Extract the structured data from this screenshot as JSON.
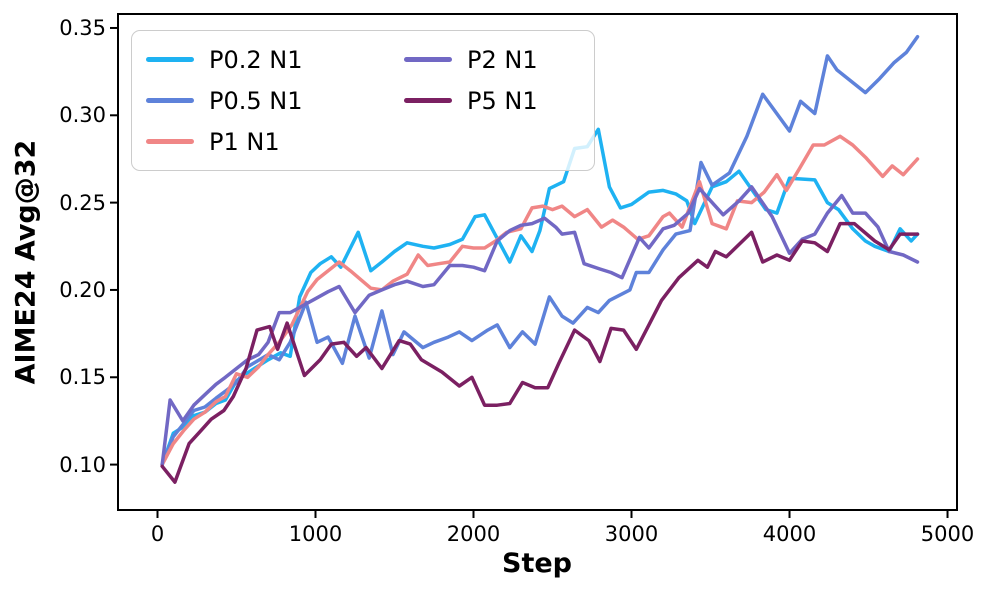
{
  "chart_data": {
    "type": "line",
    "title": "",
    "xlabel": "Step",
    "ylabel": "AIME24 Avg@32",
    "xlim": [
      -250,
      5060
    ],
    "ylim": [
      0.074,
      0.358
    ],
    "x_ticks": [
      0,
      1000,
      2000,
      3000,
      4000,
      5000
    ],
    "y_ticks": [
      0.1,
      0.15,
      0.2,
      0.25,
      0.3,
      0.35
    ],
    "grid": false,
    "background": "#ffffff",
    "axis_color": "#000000",
    "legend": {
      "position": "upper-left",
      "columns": 2,
      "order": "column-major",
      "frame_color": "#cccccc"
    },
    "series": [
      {
        "name": "P0.2 N1",
        "color": "#1eb2f2",
        "points": [
          [
            30,
            0.1
          ],
          [
            100,
            0.118
          ],
          [
            170,
            0.122
          ],
          [
            230,
            0.128
          ],
          [
            300,
            0.13
          ],
          [
            370,
            0.135
          ],
          [
            430,
            0.137
          ],
          [
            500,
            0.148
          ],
          [
            560,
            0.152
          ],
          [
            630,
            0.156
          ],
          [
            700,
            0.16
          ],
          [
            780,
            0.164
          ],
          [
            840,
            0.162
          ],
          [
            900,
            0.196
          ],
          [
            970,
            0.21
          ],
          [
            1030,
            0.215
          ],
          [
            1100,
            0.219
          ],
          [
            1160,
            0.213
          ],
          [
            1270,
            0.233
          ],
          [
            1350,
            0.211
          ],
          [
            1420,
            0.216
          ],
          [
            1500,
            0.222
          ],
          [
            1580,
            0.227
          ],
          [
            1680,
            0.225
          ],
          [
            1750,
            0.224
          ],
          [
            1850,
            0.226
          ],
          [
            1930,
            0.229
          ],
          [
            2010,
            0.242
          ],
          [
            2070,
            0.243
          ],
          [
            2230,
            0.216
          ],
          [
            2300,
            0.231
          ],
          [
            2370,
            0.222
          ],
          [
            2420,
            0.234
          ],
          [
            2480,
            0.258
          ],
          [
            2570,
            0.262
          ],
          [
            2640,
            0.281
          ],
          [
            2720,
            0.282
          ],
          [
            2790,
            0.292
          ],
          [
            2860,
            0.259
          ],
          [
            2930,
            0.247
          ],
          [
            3000,
            0.249
          ],
          [
            3110,
            0.256
          ],
          [
            3200,
            0.257
          ],
          [
            3280,
            0.255
          ],
          [
            3350,
            0.251
          ],
          [
            3400,
            0.238
          ],
          [
            3510,
            0.259
          ],
          [
            3600,
            0.262
          ],
          [
            3680,
            0.268
          ],
          [
            3850,
            0.246
          ],
          [
            3920,
            0.244
          ],
          [
            4000,
            0.264
          ],
          [
            4160,
            0.263
          ],
          [
            4240,
            0.25
          ],
          [
            4310,
            0.246
          ],
          [
            4400,
            0.235
          ],
          [
            4480,
            0.228
          ],
          [
            4540,
            0.225
          ],
          [
            4630,
            0.222
          ],
          [
            4700,
            0.235
          ],
          [
            4770,
            0.228
          ],
          [
            4810,
            0.232
          ]
        ]
      },
      {
        "name": "P0.5 N1",
        "color": "#5e82da",
        "points": [
          [
            30,
            0.1
          ],
          [
            100,
            0.116
          ],
          [
            170,
            0.124
          ],
          [
            230,
            0.131
          ],
          [
            300,
            0.133
          ],
          [
            370,
            0.138
          ],
          [
            430,
            0.142
          ],
          [
            500,
            0.147
          ],
          [
            570,
            0.156
          ],
          [
            700,
            0.163
          ],
          [
            770,
            0.16
          ],
          [
            840,
            0.17
          ],
          [
            940,
            0.193
          ],
          [
            1010,
            0.17
          ],
          [
            1080,
            0.173
          ],
          [
            1170,
            0.158
          ],
          [
            1250,
            0.185
          ],
          [
            1340,
            0.161
          ],
          [
            1420,
            0.188
          ],
          [
            1490,
            0.163
          ],
          [
            1560,
            0.176
          ],
          [
            1680,
            0.167
          ],
          [
            1750,
            0.17
          ],
          [
            1840,
            0.173
          ],
          [
            1910,
            0.176
          ],
          [
            1990,
            0.171
          ],
          [
            2090,
            0.177
          ],
          [
            2150,
            0.18
          ],
          [
            2230,
            0.167
          ],
          [
            2310,
            0.176
          ],
          [
            2390,
            0.169
          ],
          [
            2480,
            0.196
          ],
          [
            2560,
            0.185
          ],
          [
            2630,
            0.181
          ],
          [
            2720,
            0.19
          ],
          [
            2790,
            0.187
          ],
          [
            2860,
            0.194
          ],
          [
            2990,
            0.2
          ],
          [
            3030,
            0.21
          ],
          [
            3110,
            0.21
          ],
          [
            3200,
            0.223
          ],
          [
            3280,
            0.232
          ],
          [
            3370,
            0.234
          ],
          [
            3440,
            0.273
          ],
          [
            3510,
            0.26
          ],
          [
            3620,
            0.267
          ],
          [
            3730,
            0.288
          ],
          [
            3830,
            0.312
          ],
          [
            4000,
            0.291
          ],
          [
            4070,
            0.308
          ],
          [
            4160,
            0.301
          ],
          [
            4240,
            0.334
          ],
          [
            4300,
            0.326
          ],
          [
            4480,
            0.313
          ],
          [
            4570,
            0.321
          ],
          [
            4660,
            0.33
          ],
          [
            4740,
            0.336
          ],
          [
            4810,
            0.345
          ]
        ]
      },
      {
        "name": "P1 N1",
        "color": "#f08686",
        "points": [
          [
            30,
            0.1
          ],
          [
            100,
            0.112
          ],
          [
            170,
            0.12
          ],
          [
            230,
            0.126
          ],
          [
            300,
            0.13
          ],
          [
            370,
            0.136
          ],
          [
            430,
            0.139
          ],
          [
            500,
            0.152
          ],
          [
            570,
            0.15
          ],
          [
            640,
            0.156
          ],
          [
            700,
            0.163
          ],
          [
            770,
            0.17
          ],
          [
            850,
            0.18
          ],
          [
            950,
            0.199
          ],
          [
            1010,
            0.206
          ],
          [
            1150,
            0.216
          ],
          [
            1220,
            0.211
          ],
          [
            1350,
            0.201
          ],
          [
            1420,
            0.2
          ],
          [
            1490,
            0.205
          ],
          [
            1580,
            0.209
          ],
          [
            1650,
            0.22
          ],
          [
            1710,
            0.214
          ],
          [
            1780,
            0.215
          ],
          [
            1850,
            0.216
          ],
          [
            1930,
            0.225
          ],
          [
            2000,
            0.224
          ],
          [
            2070,
            0.224
          ],
          [
            2140,
            0.228
          ],
          [
            2210,
            0.233
          ],
          [
            2300,
            0.235
          ],
          [
            2370,
            0.247
          ],
          [
            2440,
            0.248
          ],
          [
            2500,
            0.246
          ],
          [
            2560,
            0.248
          ],
          [
            2640,
            0.242
          ],
          [
            2720,
            0.246
          ],
          [
            2810,
            0.236
          ],
          [
            2880,
            0.24
          ],
          [
            2950,
            0.236
          ],
          [
            3040,
            0.229
          ],
          [
            3110,
            0.231
          ],
          [
            3200,
            0.242
          ],
          [
            3240,
            0.244
          ],
          [
            3320,
            0.236
          ],
          [
            3430,
            0.262
          ],
          [
            3510,
            0.238
          ],
          [
            3600,
            0.235
          ],
          [
            3670,
            0.251
          ],
          [
            3760,
            0.25
          ],
          [
            3840,
            0.256
          ],
          [
            3920,
            0.266
          ],
          [
            3980,
            0.257
          ],
          [
            4060,
            0.269
          ],
          [
            4150,
            0.283
          ],
          [
            4220,
            0.283
          ],
          [
            4320,
            0.288
          ],
          [
            4400,
            0.283
          ],
          [
            4480,
            0.276
          ],
          [
            4590,
            0.265
          ],
          [
            4650,
            0.271
          ],
          [
            4720,
            0.266
          ],
          [
            4810,
            0.275
          ]
        ]
      },
      {
        "name": "P2 N1",
        "color": "#7168c4",
        "points": [
          [
            30,
            0.1
          ],
          [
            80,
            0.137
          ],
          [
            160,
            0.125
          ],
          [
            230,
            0.134
          ],
          [
            300,
            0.14
          ],
          [
            370,
            0.146
          ],
          [
            430,
            0.15
          ],
          [
            500,
            0.155
          ],
          [
            570,
            0.16
          ],
          [
            640,
            0.163
          ],
          [
            700,
            0.17
          ],
          [
            770,
            0.187
          ],
          [
            840,
            0.187
          ],
          [
            900,
            0.19
          ],
          [
            1000,
            0.195
          ],
          [
            1080,
            0.199
          ],
          [
            1150,
            0.202
          ],
          [
            1250,
            0.187
          ],
          [
            1340,
            0.197
          ],
          [
            1420,
            0.2
          ],
          [
            1500,
            0.203
          ],
          [
            1580,
            0.205
          ],
          [
            1680,
            0.202
          ],
          [
            1750,
            0.203
          ],
          [
            1850,
            0.214
          ],
          [
            1930,
            0.214
          ],
          [
            2000,
            0.213
          ],
          [
            2070,
            0.211
          ],
          [
            2150,
            0.228
          ],
          [
            2230,
            0.234
          ],
          [
            2300,
            0.237
          ],
          [
            2370,
            0.238
          ],
          [
            2450,
            0.241
          ],
          [
            2520,
            0.236
          ],
          [
            2560,
            0.232
          ],
          [
            2640,
            0.233
          ],
          [
            2700,
            0.215
          ],
          [
            2800,
            0.212
          ],
          [
            2870,
            0.21
          ],
          [
            2940,
            0.207
          ],
          [
            3050,
            0.23
          ],
          [
            3110,
            0.224
          ],
          [
            3200,
            0.235
          ],
          [
            3270,
            0.237
          ],
          [
            3360,
            0.244
          ],
          [
            3430,
            0.258
          ],
          [
            3580,
            0.243
          ],
          [
            3680,
            0.251
          ],
          [
            3760,
            0.259
          ],
          [
            3890,
            0.242
          ],
          [
            4000,
            0.221
          ],
          [
            4080,
            0.229
          ],
          [
            4160,
            0.232
          ],
          [
            4240,
            0.244
          ],
          [
            4330,
            0.254
          ],
          [
            4400,
            0.244
          ],
          [
            4480,
            0.244
          ],
          [
            4560,
            0.236
          ],
          [
            4630,
            0.222
          ],
          [
            4720,
            0.22
          ],
          [
            4810,
            0.216
          ]
        ]
      },
      {
        "name": "P5 N1",
        "color": "#7b2062",
        "points": [
          [
            30,
            0.099
          ],
          [
            110,
            0.09
          ],
          [
            200,
            0.112
          ],
          [
            270,
            0.119
          ],
          [
            340,
            0.126
          ],
          [
            420,
            0.131
          ],
          [
            480,
            0.139
          ],
          [
            560,
            0.155
          ],
          [
            630,
            0.177
          ],
          [
            710,
            0.179
          ],
          [
            760,
            0.166
          ],
          [
            820,
            0.181
          ],
          [
            930,
            0.151
          ],
          [
            1030,
            0.16
          ],
          [
            1100,
            0.169
          ],
          [
            1180,
            0.17
          ],
          [
            1260,
            0.162
          ],
          [
            1320,
            0.167
          ],
          [
            1420,
            0.155
          ],
          [
            1530,
            0.171
          ],
          [
            1600,
            0.169
          ],
          [
            1670,
            0.16
          ],
          [
            1800,
            0.153
          ],
          [
            1910,
            0.145
          ],
          [
            1990,
            0.15
          ],
          [
            2070,
            0.134
          ],
          [
            2150,
            0.134
          ],
          [
            2230,
            0.135
          ],
          [
            2310,
            0.147
          ],
          [
            2390,
            0.144
          ],
          [
            2470,
            0.144
          ],
          [
            2540,
            0.158
          ],
          [
            2640,
            0.177
          ],
          [
            2730,
            0.171
          ],
          [
            2800,
            0.159
          ],
          [
            2870,
            0.178
          ],
          [
            2950,
            0.177
          ],
          [
            3030,
            0.166
          ],
          [
            3110,
            0.18
          ],
          [
            3190,
            0.194
          ],
          [
            3300,
            0.207
          ],
          [
            3420,
            0.217
          ],
          [
            3480,
            0.213
          ],
          [
            3530,
            0.222
          ],
          [
            3600,
            0.219
          ],
          [
            3760,
            0.233
          ],
          [
            3830,
            0.216
          ],
          [
            3920,
            0.22
          ],
          [
            4000,
            0.217
          ],
          [
            4080,
            0.228
          ],
          [
            4160,
            0.227
          ],
          [
            4240,
            0.222
          ],
          [
            4320,
            0.238
          ],
          [
            4410,
            0.238
          ],
          [
            4540,
            0.228
          ],
          [
            4630,
            0.223
          ],
          [
            4700,
            0.232
          ],
          [
            4810,
            0.232
          ]
        ]
      }
    ]
  }
}
